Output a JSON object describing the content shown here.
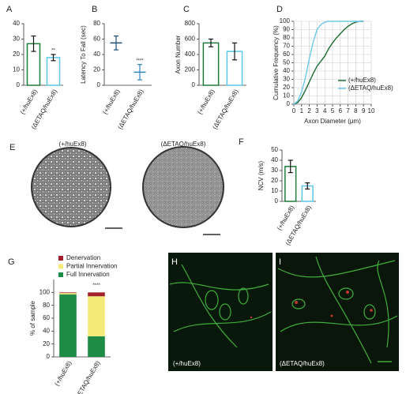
{
  "chart_data": [
    {
      "type": "bar",
      "panel": "A",
      "categories": [
        "(+/huEx8)",
        "(ΔETAQ/huEx8)"
      ],
      "values": [
        27,
        18
      ],
      "errors": [
        5,
        2
      ],
      "colors": [
        "#1e7b3c",
        "#5bc8e8"
      ],
      "significance": [
        null,
        "**"
      ],
      "ylim": [
        0,
        40
      ],
      "yticks": [
        0,
        10,
        20,
        30,
        40
      ]
    },
    {
      "type": "dot",
      "panel": "B",
      "ylabel": "Latency To Fall (sec)",
      "categories": [
        "(+/huEx8)",
        "(ΔETAQ/huEx8)"
      ],
      "values": [
        55,
        17
      ],
      "errors": [
        9,
        10
      ],
      "colors": [
        "#1f4e79",
        "#2e86c1"
      ],
      "significance": [
        null,
        "****"
      ],
      "ylim": [
        0,
        80
      ],
      "yticks": [
        0,
        20,
        40,
        60,
        80
      ]
    },
    {
      "type": "bar",
      "panel": "C",
      "ylabel": "Axon Number",
      "categories": [
        "(+/huEx8)",
        "(ΔETAQ/huEx8)"
      ],
      "values": [
        550,
        440
      ],
      "errors": [
        50,
        110
      ],
      "colors": [
        "#1e7b3c",
        "#5bc8e8"
      ],
      "ylim": [
        0,
        800
      ],
      "yticks": [
        0,
        200,
        400,
        600,
        800
      ]
    },
    {
      "type": "line",
      "panel": "D",
      "ylabel": "Cumulative Frequency (%)",
      "xlabel": "Axon Diameter (μm)",
      "x": [
        0,
        0.5,
        1,
        1.5,
        2,
        2.5,
        3,
        3.5,
        4,
        4.5,
        5,
        5.5,
        6,
        6.5,
        7,
        7.5,
        8,
        8.5,
        9
      ],
      "series": [
        {
          "name": "(+/huEx8)",
          "color": "#1e6b35",
          "values": [
            0,
            2,
            8,
            17,
            27,
            37,
            46,
            52,
            58,
            67,
            74,
            80,
            85,
            90,
            94,
            97,
            99,
            100,
            100
          ]
        },
        {
          "name": "(ΔETAQ/huEx8)",
          "color": "#6cc8ea",
          "values": [
            0,
            4,
            15,
            32,
            55,
            75,
            90,
            96,
            99,
            100,
            100,
            100,
            100,
            100,
            100,
            100,
            100,
            100,
            100
          ]
        }
      ],
      "xlim": [
        0,
        10
      ],
      "xticks": [
        0,
        1,
        2,
        3,
        4,
        5,
        6,
        7,
        8,
        9,
        10
      ],
      "ylim": [
        0,
        100
      ],
      "yticks": [
        0,
        10,
        20,
        30,
        40,
        50,
        60,
        70,
        80,
        90,
        100
      ],
      "grid": true,
      "legend": "lower right"
    },
    {
      "type": "bar",
      "panel": "F",
      "ylabel": "NCV (m/s)",
      "categories": [
        "(+/huEx8)",
        "(ΔETAQ/huEx8)"
      ],
      "values": [
        34,
        15
      ],
      "errors": [
        6,
        3
      ],
      "colors": [
        "#1e7b3c",
        "#5bc8e8"
      ],
      "ylim": [
        0,
        50
      ],
      "yticks": [
        0,
        10,
        20,
        30,
        40,
        50
      ]
    },
    {
      "type": "stacked_bar",
      "panel": "G",
      "ylabel": "% of sample",
      "categories": [
        "(+/huEx8)",
        "(ΔETAQ/huEx8)"
      ],
      "series": [
        {
          "name": "Full Innervation",
          "color": "#1e8c45",
          "values": [
            97,
            32
          ]
        },
        {
          "name": "Partial Innervation",
          "color": "#f3ea78",
          "values": [
            2,
            62
          ]
        },
        {
          "name": "Denervation",
          "color": "#a31f2b",
          "values": [
            1,
            6
          ]
        }
      ],
      "significance": [
        null,
        "****"
      ],
      "ylim": [
        0,
        120
      ],
      "yticks": [
        0,
        20,
        40,
        60,
        80,
        100
      ]
    }
  ],
  "images": [
    {
      "panel": "E",
      "captions": [
        "(+/huEx8)",
        "(ΔETAQ/huEx8)"
      ]
    },
    {
      "panels": [
        "H",
        "I"
      ],
      "captions": [
        "(+/huEx8)",
        "(ΔETAQ/huEx8)"
      ]
    }
  ]
}
